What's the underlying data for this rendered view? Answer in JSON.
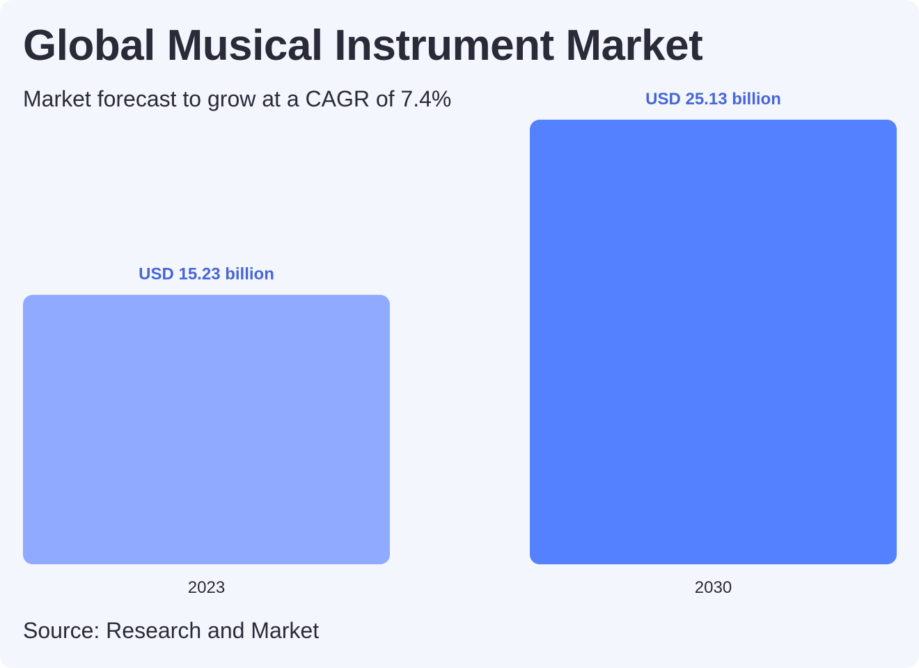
{
  "title": "Global Musical Instrument Market",
  "subtitle": "Market forecast to grow at a CAGR of 7.4%",
  "source": "Source: Research and Market",
  "colors": {
    "background": "#f4f6fe",
    "text": "#2a2b38",
    "value_label": "#4766d6",
    "bar_2023": "#8faaff",
    "bar_2030": "#5381ff"
  },
  "chart_data": {
    "type": "bar",
    "categories": [
      "2023",
      "2030"
    ],
    "values": [
      15.23,
      25.13
    ],
    "data_labels": [
      "USD 15.23 billion",
      "USD 25.13 billion"
    ],
    "bar_colors": [
      "#8faaff",
      "#5381ff"
    ],
    "title": "Global Musical Instrument Market",
    "xlabel": "",
    "ylabel": "",
    "grid": false
  }
}
